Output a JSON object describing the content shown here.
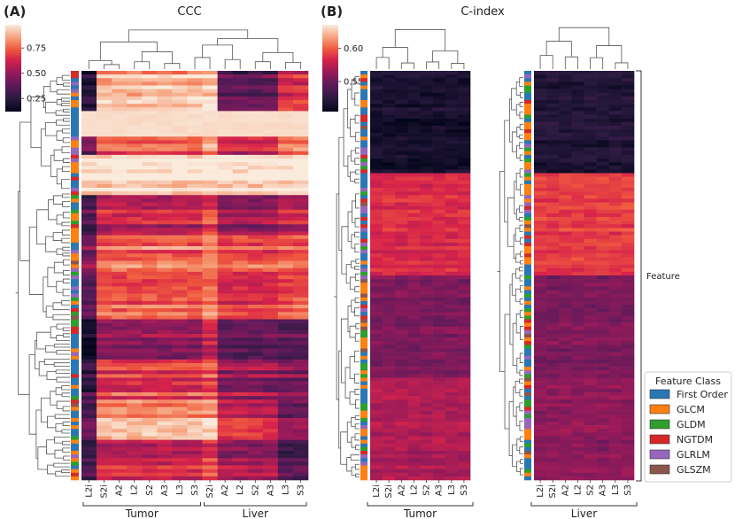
{
  "panels": [
    {
      "label": "(A)",
      "chart_data": {
        "type": "heatmap",
        "title": "CCC",
        "columns": [
          "L2i",
          "S2i",
          "A2",
          "L2",
          "S2",
          "A3",
          "L3",
          "S3",
          "S2i",
          "A2",
          "L2",
          "S2",
          "A3",
          "L3",
          "S3"
        ],
        "column_groups": [
          {
            "name": "Tumor",
            "start": 0,
            "end": 7
          },
          {
            "name": "Liver",
            "start": 8,
            "end": 14
          }
        ],
        "colorbar_ticks": [
          "0.25",
          "0.50",
          "0.75"
        ],
        "value_range": [
          0.0,
          1.0
        ],
        "row_profile": [
          [
            0.1,
            0.9,
            0.95,
            0.3,
            0.6
          ],
          [
            0.35,
            0.7,
            0.8,
            0.55,
            0.75
          ],
          [
            0.95,
            0.95,
            0.96,
            0.95,
            0.96
          ],
          [
            0.25,
            0.55,
            0.65,
            0.45,
            0.55
          ],
          [
            0.4,
            0.75,
            0.8,
            0.7,
            0.72
          ],
          [
            0.3,
            0.7,
            0.78,
            0.62,
            0.7
          ],
          [
            0.05,
            0.4,
            0.55,
            0.3,
            0.25
          ],
          [
            0.2,
            0.65,
            0.7,
            0.45,
            0.4
          ],
          [
            0.25,
            0.82,
            0.85,
            0.55,
            0.35
          ],
          [
            0.25,
            0.6,
            0.7,
            0.5,
            0.3
          ]
        ]
      }
    },
    {
      "label": "(B)",
      "chart_data": {
        "type": "heatmap",
        "title": "C-index",
        "columns_left": [
          "L2i",
          "S2i",
          "A2",
          "L2",
          "S2",
          "A3",
          "L3",
          "S3"
        ],
        "columns_right": [
          "L2i",
          "S2i",
          "A2",
          "L2",
          "S2",
          "A3",
          "L3",
          "S3"
        ],
        "group_left": "Tumor",
        "group_right": "Liver",
        "colorbar_ticks": [
          "0.55",
          "0.60"
        ],
        "value_range": [
          0.5,
          0.62
        ],
        "row_label": "Feature",
        "tumor_blocks": [
          0.515,
          0.585,
          0.555,
          0.57
        ],
        "liver_blocks": [
          0.52,
          0.59,
          0.555,
          0.56
        ]
      }
    }
  ],
  "legend": {
    "title": "Feature Class",
    "items": [
      {
        "label": "First Order",
        "color": "#2a77b4"
      },
      {
        "label": "GLCM",
        "color": "#fe8011"
      },
      {
        "label": "GLDM",
        "color": "#2c9f2c"
      },
      {
        "label": "NGTDM",
        "color": "#d52828"
      },
      {
        "label": "GLRLM",
        "color": "#9467bc"
      },
      {
        "label": "GLSZM",
        "color": "#8b564b"
      }
    ]
  }
}
